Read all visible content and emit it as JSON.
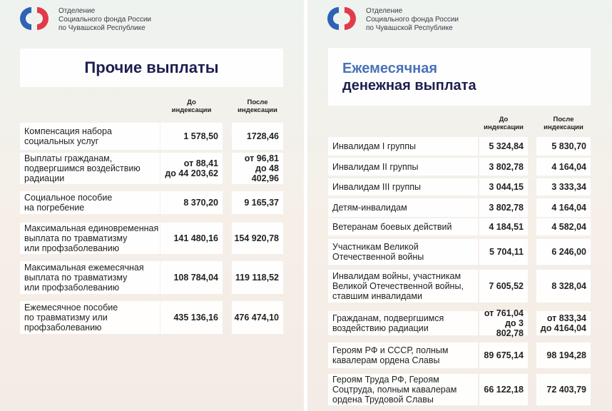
{
  "panels": [
    {
      "org": [
        "Отделение",
        "Социального фонда России",
        "по Чувашской Республике"
      ],
      "title": [
        "Прочие выплаты"
      ],
      "columns": [
        [
          "До",
          "индексации"
        ],
        [
          "После",
          "индексации"
        ]
      ],
      "rows": [
        {
          "label": [
            "Компенсация набора",
            "социальных услуг"
          ],
          "before": [
            "1 578,50"
          ],
          "after": [
            "1728,46"
          ]
        },
        {
          "label": [
            "Выплаты гражданам,",
            "подвергшимся воздействию",
            "радиации"
          ],
          "before": [
            "от 88,41",
            "до 44 203,62"
          ],
          "after": [
            "от 96,81",
            "до 48 402,96"
          ]
        },
        {
          "label": [
            "Социальное пособие",
            "на погребение"
          ],
          "before": [
            "8 370,20"
          ],
          "after": [
            "9 165,37"
          ]
        },
        {
          "label": [
            "Максимальная единовременная",
            "выплата по травматизму",
            "или профзаболеванию"
          ],
          "before": [
            "141 480,16"
          ],
          "after": [
            "154 920,78"
          ]
        },
        {
          "label": [
            "Максимальная ежемесячная",
            "выплата по травматизму",
            "или профзаболеванию"
          ],
          "before": [
            "108 784,04"
          ],
          "after": [
            "119 118,52"
          ]
        },
        {
          "label": [
            "Ежемесячное пособие",
            "по травматизму или",
            "профзаболеванию"
          ],
          "before": [
            "435 136,16"
          ],
          "after": [
            "476 474,10"
          ]
        }
      ]
    },
    {
      "org": [
        "Отделение",
        "Социального фонда России",
        "по Чувашской Республике"
      ],
      "title": [
        "Ежемесячная",
        "денежная выплата"
      ],
      "columns": [
        [
          "До",
          "индексации"
        ],
        [
          "После",
          "индексации"
        ]
      ],
      "rows": [
        {
          "label": [
            "Инвалидам I группы"
          ],
          "before": [
            "5 324,84"
          ],
          "after": [
            "5 830,70"
          ]
        },
        {
          "label": [
            "Инвалидам II группы"
          ],
          "before": [
            "3 802,78"
          ],
          "after": [
            "4 164,04"
          ]
        },
        {
          "label": [
            "Инвалидам III группы"
          ],
          "before": [
            "3 044,15"
          ],
          "after": [
            "3 333,34"
          ]
        },
        {
          "label": [
            "Детям-инвалидам"
          ],
          "before": [
            "3 802,78"
          ],
          "after": [
            "4 164,04"
          ]
        },
        {
          "label": [
            "Ветеранам боевых действий"
          ],
          "before": [
            "4 184,51"
          ],
          "after": [
            "4 582,04"
          ]
        },
        {
          "label": [
            "Участникам Великой",
            "Отечественной войны"
          ],
          "before": [
            "5 704,11"
          ],
          "after": [
            "6 246,00"
          ]
        },
        {
          "label": [
            "Инвалидам войны, участникам",
            "Великой Отечественной войны,",
            "ставшим инвалидами"
          ],
          "before": [
            "7 605,52"
          ],
          "after": [
            "8 328,04"
          ]
        },
        {
          "label": [
            "Гражданам, подвергшимся",
            "воздействию радиации"
          ],
          "before": [
            "от 761,04",
            "до 3 802,78"
          ],
          "after": [
            "от 833,34",
            "до 4164,04"
          ]
        },
        {
          "label": [
            "Героям РФ и СССР, полным",
            "кавалерам ордена Славы"
          ],
          "before": [
            "89 675,14"
          ],
          "after": [
            "98 194,28"
          ]
        },
        {
          "label": [
            "Героям Труда РФ, Героям",
            "Соцтруда, полным кавалерам",
            "ордена Трудовой Славы"
          ],
          "before": [
            "66 122,18"
          ],
          "after": [
            "72 403,79"
          ]
        }
      ]
    }
  ]
}
